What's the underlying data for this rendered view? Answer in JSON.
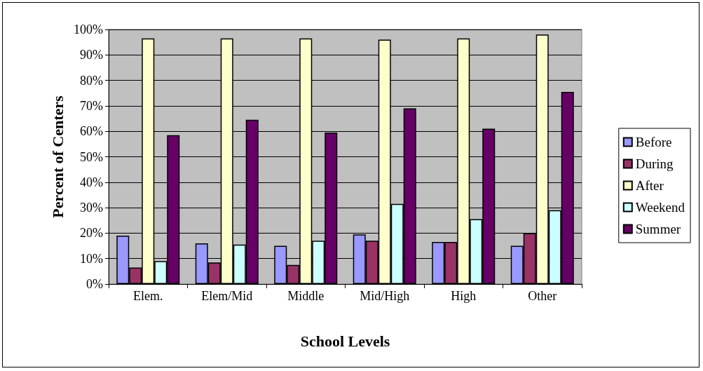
{
  "chart_data": {
    "type": "bar",
    "xlabel": "School Levels",
    "ylabel": "Percent of Centers",
    "categories": [
      "Elem.",
      "Elem/Mid",
      "Middle",
      "Mid/High",
      "High",
      "Other"
    ],
    "series": [
      {
        "name": "Before",
        "color": "#9999ff",
        "values": [
          19,
          16,
          15,
          19.5,
          16.5,
          15
        ]
      },
      {
        "name": "During",
        "color": "#993366",
        "values": [
          6.5,
          8.5,
          7.5,
          17,
          16.5,
          20
        ]
      },
      {
        "name": "After",
        "color": "#ffffcc",
        "values": [
          96.5,
          96.5,
          96.5,
          96,
          96.5,
          98
        ]
      },
      {
        "name": "Weekend",
        "color": "#ccffff",
        "values": [
          9,
          15.5,
          17,
          31.5,
          25.5,
          29
        ]
      },
      {
        "name": "Summer",
        "color": "#660066",
        "values": [
          58.5,
          64.5,
          59.5,
          69,
          61,
          75.5
        ]
      }
    ],
    "ylim": [
      0,
      100
    ],
    "yticks": [
      {
        "value": 0,
        "label": "0%"
      },
      {
        "value": 10,
        "label": "10%"
      },
      {
        "value": 20,
        "label": "20%"
      },
      {
        "value": 30,
        "label": "30%"
      },
      {
        "value": 40,
        "label": "40%"
      },
      {
        "value": 50,
        "label": "50%"
      },
      {
        "value": 60,
        "label": "60%"
      },
      {
        "value": 70,
        "label": "70%"
      },
      {
        "value": 80,
        "label": "80%"
      },
      {
        "value": 90,
        "label": "90%"
      },
      {
        "value": 100,
        "label": "100%"
      }
    ],
    "grid": "y",
    "legend": "right"
  }
}
